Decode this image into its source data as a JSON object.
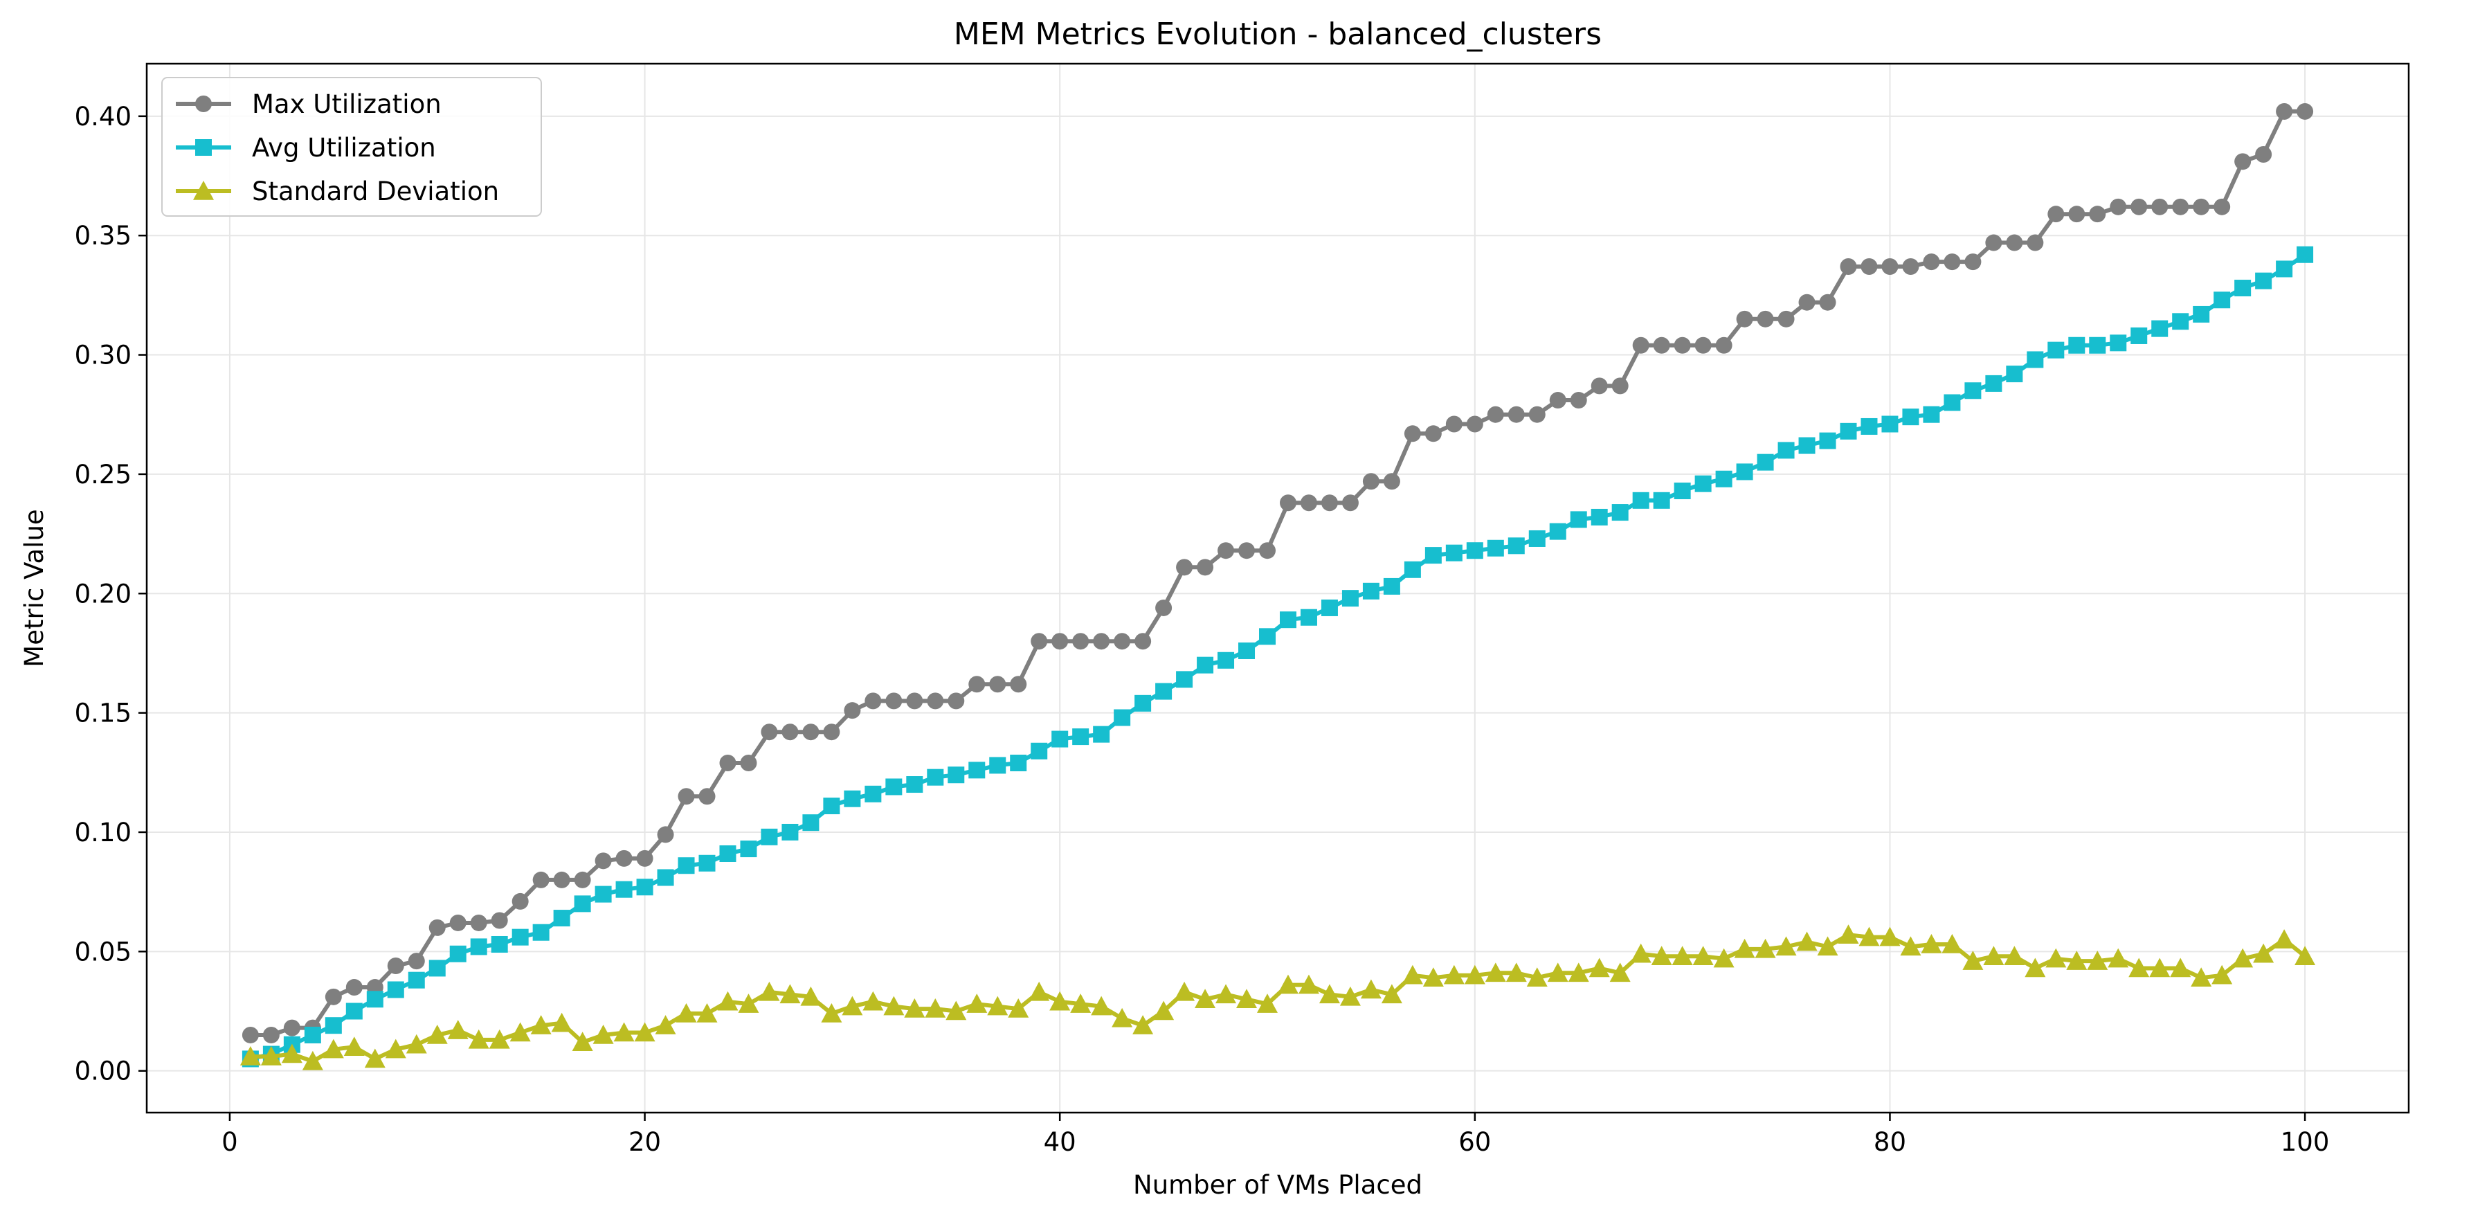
{
  "chart_data": {
    "type": "line",
    "title": "MEM Metrics Evolution - balanced_clusters",
    "xlabel": "Number of VMs Placed",
    "ylabel": "Metric Value",
    "xlim": [
      -4,
      105
    ],
    "ylim": [
      -0.0175,
      0.422
    ],
    "xticks": [
      0,
      20,
      40,
      60,
      80,
      100
    ],
    "yticks": [
      0.0,
      0.05,
      0.1,
      0.15,
      0.2,
      0.25,
      0.3,
      0.35,
      0.4
    ],
    "xtick_labels": [
      "0",
      "20",
      "40",
      "60",
      "80",
      "100"
    ],
    "ytick_labels": [
      "0.00",
      "0.05",
      "0.10",
      "0.15",
      "0.20",
      "0.25",
      "0.30",
      "0.35",
      "0.40"
    ],
    "grid": true,
    "legend_position": "top-left",
    "x": [
      1,
      2,
      3,
      4,
      5,
      6,
      7,
      8,
      9,
      10,
      11,
      12,
      13,
      14,
      15,
      16,
      17,
      18,
      19,
      20,
      21,
      22,
      23,
      24,
      25,
      26,
      27,
      28,
      29,
      30,
      31,
      32,
      33,
      34,
      35,
      36,
      37,
      38,
      39,
      40,
      41,
      42,
      43,
      44,
      45,
      46,
      47,
      48,
      49,
      50,
      51,
      52,
      53,
      54,
      55,
      56,
      57,
      58,
      59,
      60,
      61,
      62,
      63,
      64,
      65,
      66,
      67,
      68,
      69,
      70,
      71,
      72,
      73,
      74,
      75,
      76,
      77,
      78,
      79,
      80,
      81,
      82,
      83,
      84,
      85,
      86,
      87,
      88,
      89,
      90,
      91,
      92,
      93,
      94,
      95,
      96,
      97,
      98,
      99,
      100
    ],
    "series": [
      {
        "name": "Max Utilization",
        "color": "#7f7f7f",
        "marker": "circle",
        "values": [
          0.015,
          0.015,
          0.018,
          0.018,
          0.031,
          0.035,
          0.035,
          0.044,
          0.046,
          0.06,
          0.062,
          0.062,
          0.063,
          0.071,
          0.08,
          0.08,
          0.08,
          0.088,
          0.089,
          0.089,
          0.099,
          0.115,
          0.115,
          0.129,
          0.129,
          0.142,
          0.142,
          0.142,
          0.142,
          0.151,
          0.155,
          0.155,
          0.155,
          0.155,
          0.155,
          0.162,
          0.162,
          0.162,
          0.18,
          0.18,
          0.18,
          0.18,
          0.18,
          0.18,
          0.194,
          0.211,
          0.211,
          0.218,
          0.218,
          0.218,
          0.238,
          0.238,
          0.238,
          0.238,
          0.247,
          0.247,
          0.267,
          0.267,
          0.271,
          0.271,
          0.275,
          0.275,
          0.275,
          0.281,
          0.281,
          0.287,
          0.287,
          0.304,
          0.304,
          0.304,
          0.304,
          0.304,
          0.315,
          0.315,
          0.315,
          0.322,
          0.322,
          0.337,
          0.337,
          0.337,
          0.337,
          0.339,
          0.339,
          0.339,
          0.347,
          0.347,
          0.347,
          0.359,
          0.359,
          0.359,
          0.362,
          0.362,
          0.362,
          0.362,
          0.362,
          0.362,
          0.381,
          0.384,
          0.402,
          0.402
        ]
      },
      {
        "name": "Avg Utilization",
        "color": "#17becf",
        "marker": "square",
        "values": [
          0.005,
          0.007,
          0.011,
          0.015,
          0.019,
          0.025,
          0.03,
          0.034,
          0.038,
          0.043,
          0.049,
          0.052,
          0.053,
          0.056,
          0.058,
          0.064,
          0.07,
          0.074,
          0.076,
          0.077,
          0.081,
          0.086,
          0.087,
          0.091,
          0.093,
          0.098,
          0.1,
          0.104,
          0.111,
          0.114,
          0.116,
          0.119,
          0.12,
          0.123,
          0.124,
          0.126,
          0.128,
          0.129,
          0.134,
          0.139,
          0.14,
          0.141,
          0.148,
          0.154,
          0.159,
          0.164,
          0.17,
          0.172,
          0.176,
          0.182,
          0.189,
          0.19,
          0.194,
          0.198,
          0.201,
          0.203,
          0.21,
          0.216,
          0.217,
          0.218,
          0.219,
          0.22,
          0.223,
          0.226,
          0.231,
          0.232,
          0.234,
          0.239,
          0.239,
          0.243,
          0.246,
          0.248,
          0.251,
          0.255,
          0.26,
          0.262,
          0.264,
          0.268,
          0.27,
          0.271,
          0.274,
          0.275,
          0.28,
          0.285,
          0.288,
          0.292,
          0.298,
          0.302,
          0.304,
          0.304,
          0.305,
          0.308,
          0.311,
          0.314,
          0.317,
          0.323,
          0.328,
          0.331,
          0.336,
          0.342
        ]
      },
      {
        "name": "Standard Deviation",
        "color": "#bcbd22",
        "marker": "triangle",
        "values": [
          0.006,
          0.006,
          0.007,
          0.004,
          0.009,
          0.01,
          0.005,
          0.009,
          0.011,
          0.015,
          0.017,
          0.013,
          0.013,
          0.016,
          0.019,
          0.02,
          0.012,
          0.015,
          0.016,
          0.016,
          0.019,
          0.024,
          0.024,
          0.029,
          0.028,
          0.033,
          0.032,
          0.031,
          0.024,
          0.027,
          0.029,
          0.027,
          0.026,
          0.026,
          0.025,
          0.028,
          0.027,
          0.026,
          0.033,
          0.029,
          0.028,
          0.027,
          0.022,
          0.019,
          0.025,
          0.033,
          0.03,
          0.032,
          0.03,
          0.028,
          0.036,
          0.036,
          0.032,
          0.031,
          0.034,
          0.032,
          0.04,
          0.039,
          0.04,
          0.04,
          0.041,
          0.041,
          0.039,
          0.041,
          0.041,
          0.043,
          0.041,
          0.049,
          0.048,
          0.048,
          0.048,
          0.047,
          0.051,
          0.051,
          0.052,
          0.054,
          0.052,
          0.057,
          0.056,
          0.056,
          0.052,
          0.053,
          0.053,
          0.046,
          0.048,
          0.048,
          0.043,
          0.047,
          0.046,
          0.046,
          0.047,
          0.043,
          0.043,
          0.043,
          0.039,
          0.04,
          0.047,
          0.049,
          0.055,
          0.048
        ]
      }
    ]
  }
}
